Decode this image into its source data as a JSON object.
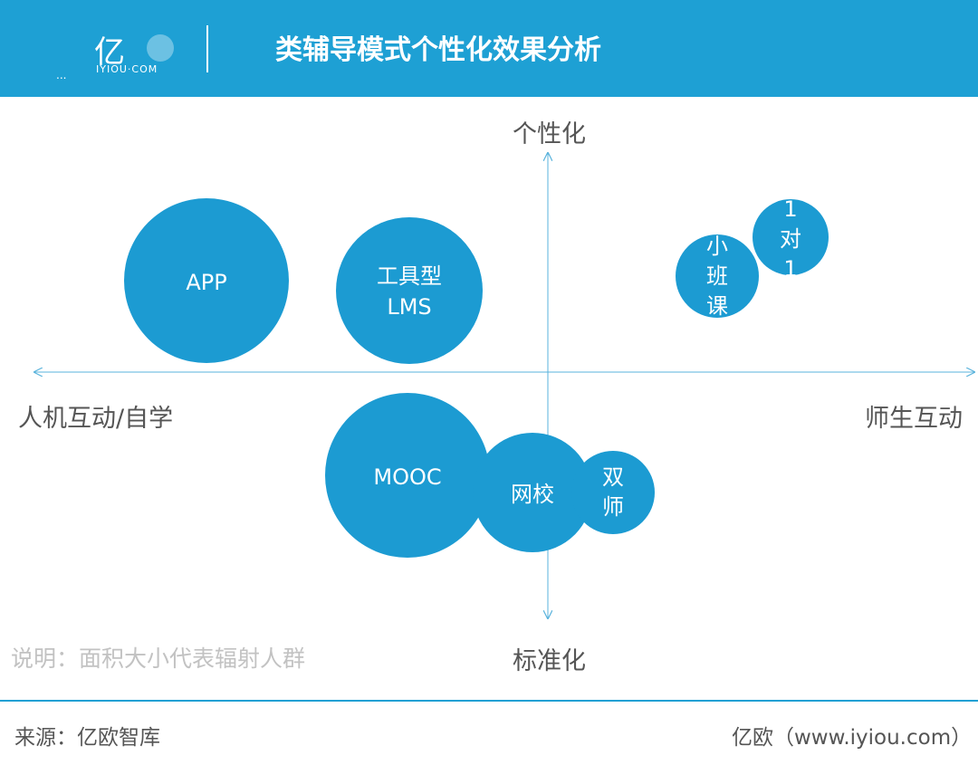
{
  "header": {
    "logo_text": "亿",
    "logo_subtext": "IYIOU·COM",
    "logo_ellipsis": "...",
    "title": "类辅导模式个性化效果分析"
  },
  "axes": {
    "top": "个性化",
    "bottom": "标准化",
    "left": "人机互动/自学",
    "right": "师生互动"
  },
  "bubbles": [
    {
      "id": "app",
      "lines": [
        "APP"
      ]
    },
    {
      "id": "tool-lms",
      "lines": [
        "工具型",
        "LMS"
      ]
    },
    {
      "id": "small-class",
      "lines": [
        "小",
        "班",
        "课"
      ]
    },
    {
      "id": "one-on-one",
      "lines": [
        "1",
        "对",
        "1"
      ]
    },
    {
      "id": "mooc",
      "lines": [
        "MOOC"
      ]
    },
    {
      "id": "online-school",
      "lines": [
        "网校"
      ]
    },
    {
      "id": "dual-teacher",
      "lines": [
        "双",
        "师"
      ]
    }
  ],
  "colors": {
    "bubble": "#1c9bd2",
    "axis": "#5ab3dc",
    "header": "#1ea0d4"
  },
  "note": "说明：面积大小代表辐射人群",
  "footer": {
    "source": "来源：亿欧智库",
    "brand": "亿欧（www.iyiou.com）"
  }
}
